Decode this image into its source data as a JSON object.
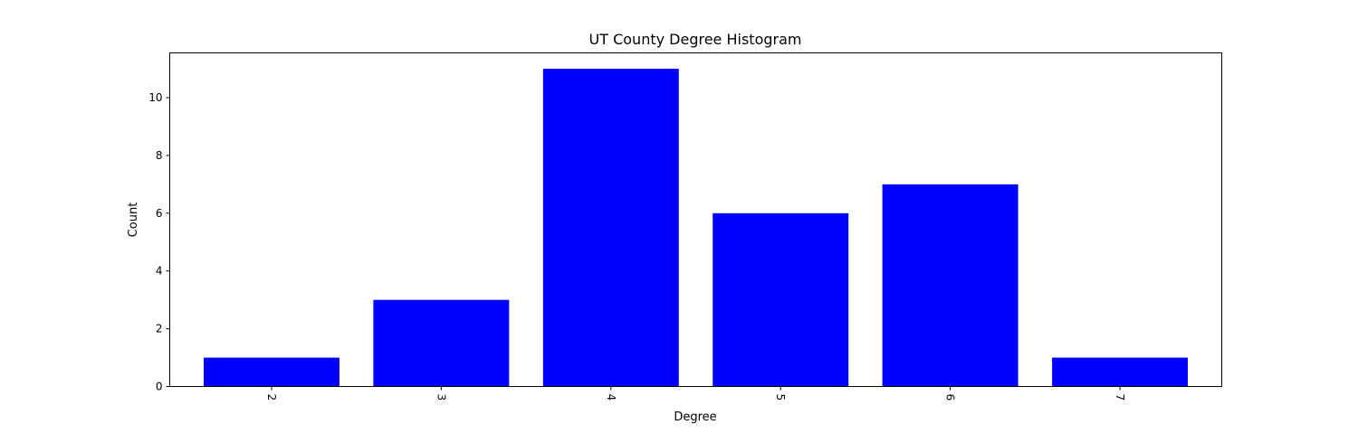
{
  "chart_data": {
    "type": "bar",
    "title": "UT County Degree Histogram",
    "xlabel": "Degree",
    "ylabel": "Count",
    "categories": [
      "2",
      "3",
      "4",
      "5",
      "6",
      "7"
    ],
    "values": [
      1,
      3,
      11,
      6,
      7,
      1
    ],
    "xlim": [
      1.4,
      7.6
    ],
    "ylim": [
      0,
      11.55
    ],
    "yticks": [
      0,
      2,
      4,
      6,
      8,
      10
    ],
    "xtick_rotation_deg": 90,
    "bar_width": 0.8,
    "bar_color": "#0000ff",
    "grid": false,
    "legend": "none"
  }
}
